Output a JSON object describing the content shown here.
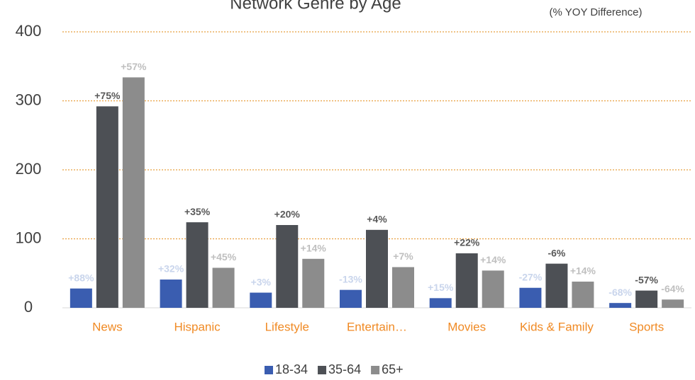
{
  "chart_data": {
    "type": "bar",
    "title": "Network Genre by Age",
    "subtitle": "(% YOY Difference)",
    "categories": [
      "News",
      "Hispanic",
      "Lifestyle",
      "Entertain…",
      "Movies",
      "Kids & Family",
      "Sports"
    ],
    "series": [
      {
        "name": "18-34",
        "color": "#3a5db0",
        "label_color": "#c9d5ec",
        "values": [
          28,
          41,
          22,
          26,
          14,
          29,
          7
        ],
        "annotations": [
          "+88%",
          "+32%",
          "+3%",
          "-13%",
          "+15%",
          "-27%",
          "-68%"
        ]
      },
      {
        "name": "35-64",
        "color": "#4d5055",
        "label_color": "#595959",
        "values": [
          292,
          124,
          120,
          113,
          79,
          64,
          25
        ],
        "annotations": [
          "+75%",
          "+35%",
          "+20%",
          "+4%",
          "+22%",
          "-6%",
          "-57%"
        ]
      },
      {
        "name": "65+",
        "color": "#8c8c8c",
        "label_color": "#bfbfbf",
        "values": [
          334,
          58,
          71,
          59,
          54,
          38,
          12
        ],
        "annotations": [
          "+57%",
          "+45%",
          "+14%",
          "+7%",
          "+14%",
          "+14%",
          "-64%"
        ]
      }
    ],
    "ylim": [
      0,
      400
    ],
    "yticks": [
      0,
      100,
      200,
      300,
      400
    ],
    "grid": true
  }
}
